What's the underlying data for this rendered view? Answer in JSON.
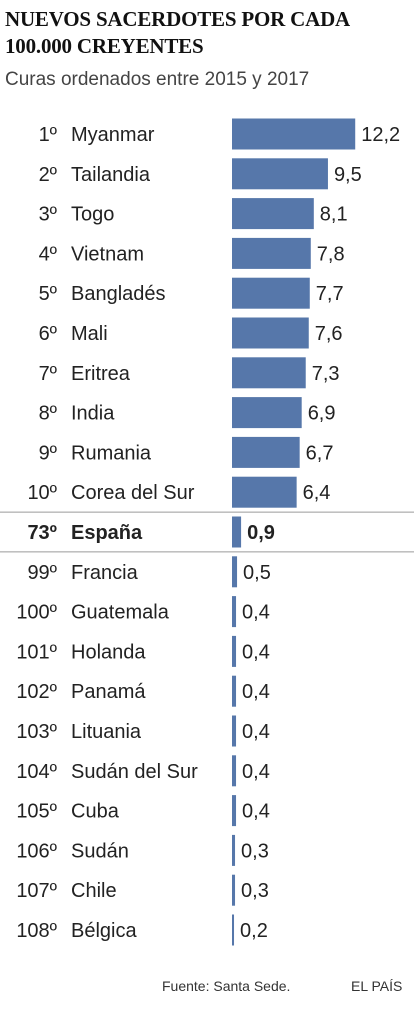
{
  "title": "NUEVOS SACERDOTES POR CADA 100.000 CREYENTES",
  "subtitle": "Curas ordenados entre 2015 y 2017",
  "source": "Fuente: Santa Sede.",
  "brand": "EL PAÍS",
  "colors": {
    "bar": "#5677aa",
    "text": "#222222",
    "separator": "#9a9a9a"
  },
  "chart_data": {
    "type": "bar",
    "orientation": "horizontal",
    "title": "NUEVOS SACERDOTES POR CADA 100.000 CREYENTES",
    "subtitle": "Curas ordenados entre 2015 y 2017",
    "categories": [
      "Myanmar",
      "Tailandia",
      "Togo",
      "Vietnam",
      "Bangladés",
      "Mali",
      "Eritrea",
      "India",
      "Rumania",
      "Corea del Sur",
      "España",
      "Francia",
      "Guatemala",
      "Holanda",
      "Panamá",
      "Lituania",
      "Sudán del Sur",
      "Cuba",
      "Sudán",
      "Chile",
      "Bélgica"
    ],
    "ranks": [
      "1º",
      "2º",
      "3º",
      "4º",
      "5º",
      "6º",
      "7º",
      "8º",
      "9º",
      "10º",
      "73º",
      "99º",
      "100º",
      "101º",
      "102º",
      "103º",
      "104º",
      "105º",
      "106º",
      "107º",
      "108º"
    ],
    "values": [
      12.2,
      9.5,
      8.1,
      7.8,
      7.7,
      7.6,
      7.3,
      6.9,
      6.7,
      6.4,
      0.9,
      0.5,
      0.4,
      0.4,
      0.4,
      0.4,
      0.4,
      0.4,
      0.3,
      0.3,
      0.2
    ],
    "value_labels": [
      "12,2",
      "9,5",
      "8,1",
      "7,8",
      "7,7",
      "7,6",
      "7,3",
      "6,9",
      "6,7",
      "6,4",
      "0,9",
      "0,5",
      "0,4",
      "0,4",
      "0,4",
      "0,4",
      "0,4",
      "0,4",
      "0,3",
      "0,3",
      "0,2"
    ],
    "highlight": "España",
    "xlim": [
      0,
      12.2
    ],
    "grid": false,
    "legend": "none"
  }
}
